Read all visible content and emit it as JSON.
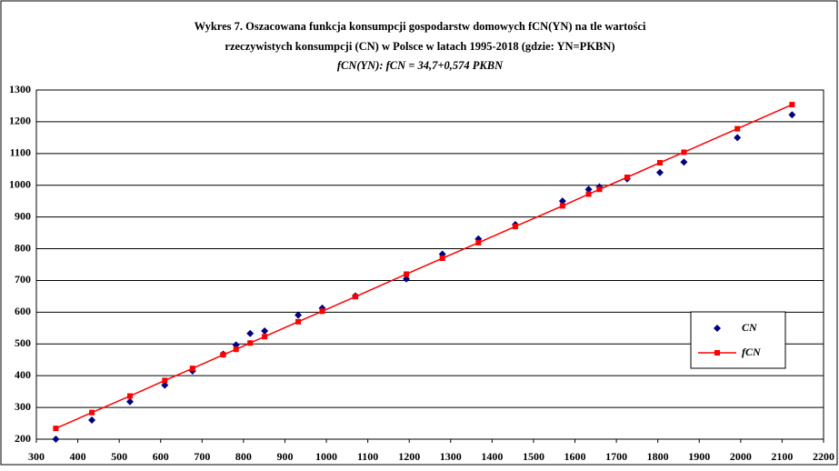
{
  "chart_data": {
    "type": "scatter",
    "title": [
      "Wykres 7. Oszacowana funkcja konsumpcji gospodarstw domowych fCN(YN) na tle wartości",
      "rzeczywistych konsumpcji (CN) w Polsce w latach 1995-2018 (gdzie: YN=PKBN)",
      "fCN(YN): fCN = 34,7+0,574 PKBN"
    ],
    "x": [
      347,
      434,
      526,
      610,
      677,
      751,
      782,
      816,
      851,
      932,
      990,
      1070,
      1193,
      1280,
      1367,
      1456,
      1570,
      1633,
      1659,
      1726,
      1805,
      1863,
      1992,
      2124
    ],
    "series": [
      {
        "name": "CN",
        "color": "#000080",
        "marker": "diamond",
        "line": false,
        "values": [
          200,
          260,
          318,
          370,
          415,
          468,
          497,
          533,
          541,
          591,
          613,
          651,
          705,
          783,
          831,
          876,
          950,
          987,
          995,
          1020,
          1040,
          1073,
          1150,
          1222
        ]
      },
      {
        "name": "fCN",
        "color": "#ff0000",
        "marker": "square",
        "line": true,
        "values": [
          234,
          284,
          336,
          385,
          423,
          466,
          483,
          503,
          523,
          570,
          603,
          649,
          720,
          770,
          819,
          870,
          935,
          972,
          987,
          1025,
          1071,
          1104,
          1178,
          1254
        ]
      }
    ],
    "xlim": [
      300,
      2200
    ],
    "xticks": [
      300,
      400,
      500,
      600,
      700,
      800,
      900,
      1000,
      1100,
      1200,
      1300,
      1400,
      1500,
      1600,
      1700,
      1800,
      1900,
      2000,
      2100,
      2200
    ],
    "ylim": [
      200,
      1300
    ],
    "yticks": [
      200,
      300,
      400,
      500,
      600,
      700,
      800,
      900,
      1000,
      1100,
      1200,
      1300
    ],
    "grid": true,
    "legend": "right"
  }
}
